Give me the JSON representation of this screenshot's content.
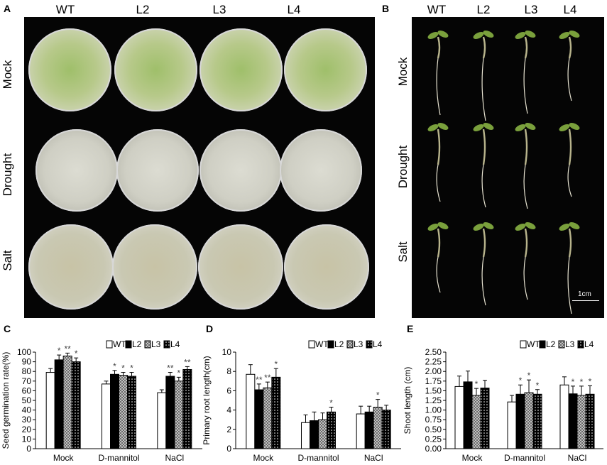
{
  "panel_a": {
    "letter": "A",
    "columns": [
      "WT",
      "L2",
      "L3",
      "L4"
    ],
    "rows": [
      "Mock",
      "Drought",
      "Salt"
    ]
  },
  "panel_b": {
    "letter": "B",
    "columns": [
      "WT",
      "L2",
      "L3",
      "L4"
    ],
    "rows": [
      "Mock",
      "Drought",
      "Salt"
    ],
    "scale_label": "1cm"
  },
  "colors": {
    "photo_bg": "#050505",
    "seedling_green": "#7aa03c",
    "root": "#e8e4d2"
  },
  "chart_data": [
    {
      "type": "bar",
      "panel": "C",
      "categories": [
        "Mock",
        "D-mannitol",
        "NaCl"
      ],
      "ylabel": "Seed germination rate(%)",
      "ylim": [
        0,
        100
      ],
      "yticks": [
        0,
        10,
        20,
        30,
        40,
        50,
        60,
        70,
        80,
        90,
        100
      ],
      "legend_position": "top-right",
      "series": [
        {
          "name": "WT",
          "pattern": "white",
          "values": [
            79,
            67,
            58
          ],
          "errors": [
            4,
            3,
            3
          ],
          "marks": [
            "",
            "",
            ""
          ]
        },
        {
          "name": "L2",
          "pattern": "black",
          "values": [
            92,
            77,
            75
          ],
          "errors": [
            5,
            4,
            4
          ],
          "marks": [
            "*",
            "*",
            "**"
          ]
        },
        {
          "name": "L3",
          "pattern": "crosshatch",
          "values": [
            96,
            76,
            70
          ],
          "errors": [
            3,
            3,
            4
          ],
          "marks": [
            "**",
            "*",
            "*"
          ]
        },
        {
          "name": "L4",
          "pattern": "dotted-black",
          "values": [
            90,
            75,
            82
          ],
          "errors": [
            4,
            4,
            3
          ],
          "marks": [
            "*",
            "*",
            "**"
          ]
        }
      ]
    },
    {
      "type": "bar",
      "panel": "D",
      "categories": [
        "Mock",
        "D-mannitol",
        "NaCl"
      ],
      "ylabel": "Primary root length(cm)",
      "ylim": [
        0,
        10
      ],
      "yticks": [
        0,
        2,
        4,
        6,
        8,
        10
      ],
      "legend_position": "top-right",
      "series": [
        {
          "name": "WT",
          "pattern": "white",
          "values": [
            7.7,
            2.7,
            3.6
          ],
          "errors": [
            1.0,
            0.8,
            0.8
          ],
          "marks": [
            "",
            "",
            ""
          ]
        },
        {
          "name": "L2",
          "pattern": "black",
          "values": [
            6.1,
            2.9,
            3.8
          ],
          "errors": [
            0.6,
            0.9,
            0.6
          ],
          "marks": [
            "**",
            "",
            ""
          ]
        },
        {
          "name": "L3",
          "pattern": "crosshatch",
          "values": [
            6.3,
            3.0,
            4.3
          ],
          "errors": [
            0.6,
            0.7,
            0.8
          ],
          "marks": [
            "**",
            "",
            "*"
          ]
        },
        {
          "name": "L4",
          "pattern": "dotted-black",
          "values": [
            7.4,
            3.8,
            4.0
          ],
          "errors": [
            0.9,
            0.5,
            0.5
          ],
          "marks": [
            "*",
            "*",
            ""
          ]
        }
      ]
    },
    {
      "type": "bar",
      "panel": "E",
      "categories": [
        "Mock",
        "D-mannitol",
        "NaCl"
      ],
      "ylabel": "Shoot length (cm)",
      "ylim": [
        0,
        2.5
      ],
      "yticks": [
        "0.00",
        "0.25",
        "0.50",
        "0.75",
        "1.00",
        "1.25",
        "1.50",
        "1.75",
        "2.00",
        "2.25",
        "2.50"
      ],
      "legend_position": "top-right",
      "series": [
        {
          "name": "WT",
          "pattern": "white",
          "values": [
            1.61,
            1.21,
            1.65
          ],
          "errors": [
            0.27,
            0.17,
            0.21
          ],
          "marks": [
            "",
            "",
            ""
          ]
        },
        {
          "name": "L2",
          "pattern": "black",
          "values": [
            1.73,
            1.41,
            1.42
          ],
          "errors": [
            0.28,
            0.24,
            0.2
          ],
          "marks": [
            "",
            "*",
            "*"
          ]
        },
        {
          "name": "L3",
          "pattern": "crosshatch",
          "values": [
            1.38,
            1.45,
            1.38
          ],
          "errors": [
            0.18,
            0.33,
            0.24
          ],
          "marks": [
            "*",
            "*",
            "*"
          ]
        },
        {
          "name": "L4",
          "pattern": "dotted-black",
          "values": [
            1.57,
            1.41,
            1.41
          ],
          "errors": [
            0.2,
            0.12,
            0.22
          ],
          "marks": [
            "",
            "*",
            "*"
          ]
        }
      ]
    }
  ]
}
